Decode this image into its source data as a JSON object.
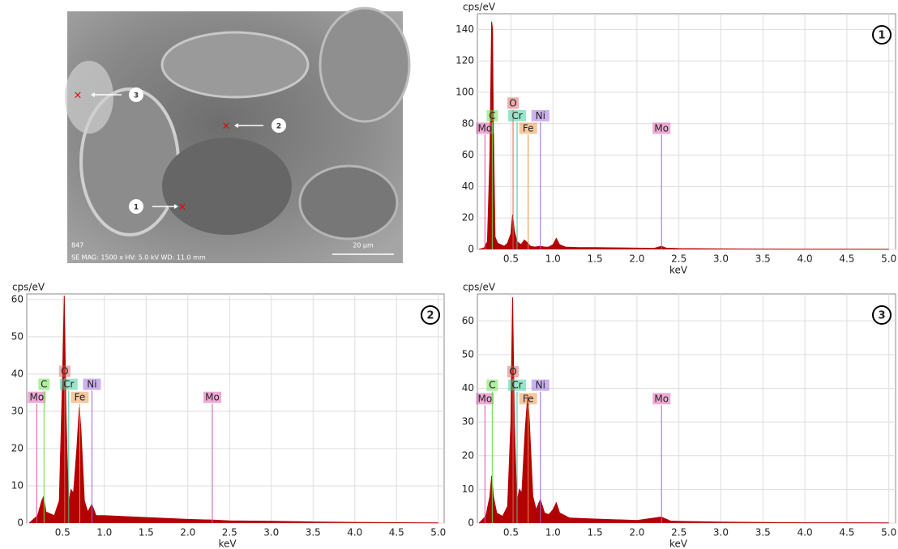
{
  "image": {
    "info_id": "847",
    "info": "SE MAG: 1500 x HV: 5.0 kV WD: 11.0 mm",
    "scale_bar": "20 µm",
    "points": [
      {
        "label": "1"
      },
      {
        "label": "2"
      },
      {
        "label": "3"
      }
    ]
  },
  "chart_data": [
    {
      "type": "area",
      "badge": "1",
      "y_label": "cps/eV",
      "x_label": "keV",
      "color": "#b30000",
      "grid": true,
      "xlim": [
        0.1,
        5.08
      ],
      "ylim": [
        0,
        150
      ],
      "xticks": [
        0.5,
        {
          "value": 1,
          "label": "1.0"
        },
        1.5,
        {
          "value": 2,
          "label": "2.0"
        },
        2.5,
        {
          "value": 3,
          "label": "3.0"
        },
        3.5,
        {
          "value": 4,
          "label": "4.0"
        },
        4.5,
        {
          "value": 5,
          "label": "5.0"
        }
      ],
      "yticks": [
        0,
        20,
        40,
        60,
        80,
        100,
        120,
        140
      ],
      "x": [
        0.12,
        0.18,
        0.22,
        0.25,
        0.27,
        0.28,
        0.29,
        0.31,
        0.34,
        0.38,
        0.42,
        0.46,
        0.5,
        0.52,
        0.54,
        0.57,
        0.62,
        0.66,
        0.7,
        0.73,
        0.78,
        0.85,
        0.9,
        0.95,
        1.0,
        1.04,
        1.08,
        1.15,
        1.3,
        1.5,
        1.8,
        2.0,
        2.2,
        2.29,
        2.35,
        2.5,
        3.0,
        3.5,
        4.0,
        4.5,
        5.0
      ],
      "values": [
        0,
        1,
        5,
        60,
        145,
        140,
        80,
        8,
        4,
        3,
        2,
        4,
        10,
        22,
        12,
        5,
        3,
        6,
        4,
        2,
        1.5,
        2,
        1.5,
        1.5,
        3,
        7,
        3,
        1.5,
        1.2,
        1.2,
        1,
        0.8,
        0.6,
        2,
        0.8,
        0.5,
        0.3,
        0.2,
        0.1,
        0.1,
        0.05
      ],
      "markers": [
        {
          "label": "Mo",
          "x": 0.19,
          "y": 73,
          "color": "#dd55aa"
        },
        {
          "label": "C",
          "x": 0.277,
          "y": 81,
          "color": "#66dd44"
        },
        {
          "label": "O",
          "x": 0.525,
          "y": 89,
          "color": "#e06060"
        },
        {
          "label": "Cr",
          "x": 0.573,
          "y": 81,
          "color": "#33cc99"
        },
        {
          "label": "Fe",
          "x": 0.705,
          "y": 73,
          "color": "#f09040"
        },
        {
          "label": "Ni",
          "x": 0.851,
          "y": 81,
          "color": "#9966dd"
        },
        {
          "label": "Mo",
          "x": 2.293,
          "y": 73,
          "color": "#dd55aa"
        }
      ]
    },
    {
      "type": "area",
      "badge": "2",
      "y_label": "cps/eV",
      "x_label": "keV",
      "color": "#b30000",
      "grid": true,
      "xlim": [
        0.07,
        5.07
      ],
      "ylim": [
        0,
        61.5
      ],
      "xticks": [
        0.5,
        {
          "value": 1,
          "label": "1.0"
        },
        1.5,
        {
          "value": 2,
          "label": "2.0"
        },
        2.5,
        {
          "value": 3,
          "label": "3.0"
        },
        3.5,
        {
          "value": 4,
          "label": "4.0"
        },
        4.5,
        {
          "value": 5,
          "label": "5.0"
        }
      ],
      "yticks": [
        0,
        10,
        20,
        30,
        40,
        50,
        60
      ],
      "x": [
        0.1,
        0.2,
        0.25,
        0.27,
        0.3,
        0.4,
        0.46,
        0.5,
        0.52,
        0.54,
        0.57,
        0.6,
        0.63,
        0.67,
        0.7,
        0.72,
        0.76,
        0.8,
        0.85,
        0.9,
        0.95,
        1.0,
        1.2,
        1.5,
        2.0,
        2.3,
        2.5,
        3.0,
        3.5,
        4.0,
        4.5,
        5.0
      ],
      "values": [
        0,
        2,
        6,
        7,
        3,
        2,
        6,
        40,
        61,
        30,
        5,
        9,
        8,
        20,
        31,
        25,
        6,
        3,
        5,
        2,
        2,
        2,
        1.8,
        1.5,
        1,
        0.8,
        0.6,
        0.5,
        0.3,
        0.2,
        0.1,
        0.05
      ],
      "markers": [
        {
          "label": "Mo",
          "x": 0.19,
          "y": 32,
          "color": "#dd55aa"
        },
        {
          "label": "C",
          "x": 0.277,
          "y": 35.5,
          "color": "#66dd44"
        },
        {
          "label": "O",
          "x": 0.525,
          "y": 39,
          "color": "#e06060"
        },
        {
          "label": "Cr",
          "x": 0.573,
          "y": 35.5,
          "color": "#33cc99"
        },
        {
          "label": "Fe",
          "x": 0.705,
          "y": 32,
          "color": "#f09040"
        },
        {
          "label": "Ni",
          "x": 0.851,
          "y": 35.5,
          "color": "#9966dd"
        },
        {
          "label": "Mo",
          "x": 2.293,
          "y": 32,
          "color": "#dd55aa"
        }
      ]
    },
    {
      "type": "area",
      "badge": "3",
      "y_label": "cps/eV",
      "x_label": "keV",
      "color": "#b30000",
      "grid": true,
      "xlim": [
        0.1,
        5.08
      ],
      "ylim": [
        0,
        68
      ],
      "xticks": [
        0.5,
        {
          "value": 1,
          "label": "1.0"
        },
        1.5,
        {
          "value": 2,
          "label": "2.0"
        },
        2.5,
        {
          "value": 3,
          "label": "3.0"
        },
        3.5,
        {
          "value": 4,
          "label": "4.0"
        },
        4.5,
        {
          "value": 5,
          "label": "5.0"
        }
      ],
      "yticks": [
        0,
        10,
        20,
        30,
        40,
        50,
        60
      ],
      "x": [
        0.12,
        0.2,
        0.25,
        0.27,
        0.29,
        0.33,
        0.4,
        0.46,
        0.5,
        0.52,
        0.54,
        0.57,
        0.6,
        0.63,
        0.67,
        0.7,
        0.72,
        0.76,
        0.8,
        0.85,
        0.9,
        0.95,
        1.0,
        1.04,
        1.08,
        1.2,
        1.5,
        2.0,
        2.29,
        2.4,
        2.5,
        3.0,
        3.5,
        4.0,
        4.5,
        5.0
      ],
      "values": [
        0,
        2,
        8,
        14,
        8,
        3,
        2,
        5,
        30,
        67,
        30,
        6,
        10,
        9,
        28,
        38,
        30,
        8,
        4,
        7,
        3,
        2.5,
        4,
        6,
        3,
        1.5,
        1.2,
        0.8,
        1.8,
        0.6,
        0.5,
        0.3,
        0.2,
        0.1,
        0.1,
        0.05
      ],
      "markers": [
        {
          "label": "Mo",
          "x": 0.19,
          "y": 35,
          "color": "#dd55aa"
        },
        {
          "label": "C",
          "x": 0.277,
          "y": 39,
          "color": "#66dd44"
        },
        {
          "label": "O",
          "x": 0.525,
          "y": 43,
          "color": "#e06060"
        },
        {
          "label": "Cr",
          "x": 0.573,
          "y": 39,
          "color": "#33cc99"
        },
        {
          "label": "Fe",
          "x": 0.705,
          "y": 35,
          "color": "#f09040"
        },
        {
          "label": "Ni",
          "x": 0.851,
          "y": 39,
          "color": "#9966dd"
        },
        {
          "label": "Mo",
          "x": 2.293,
          "y": 35,
          "color": "#dd55aa"
        }
      ]
    }
  ]
}
